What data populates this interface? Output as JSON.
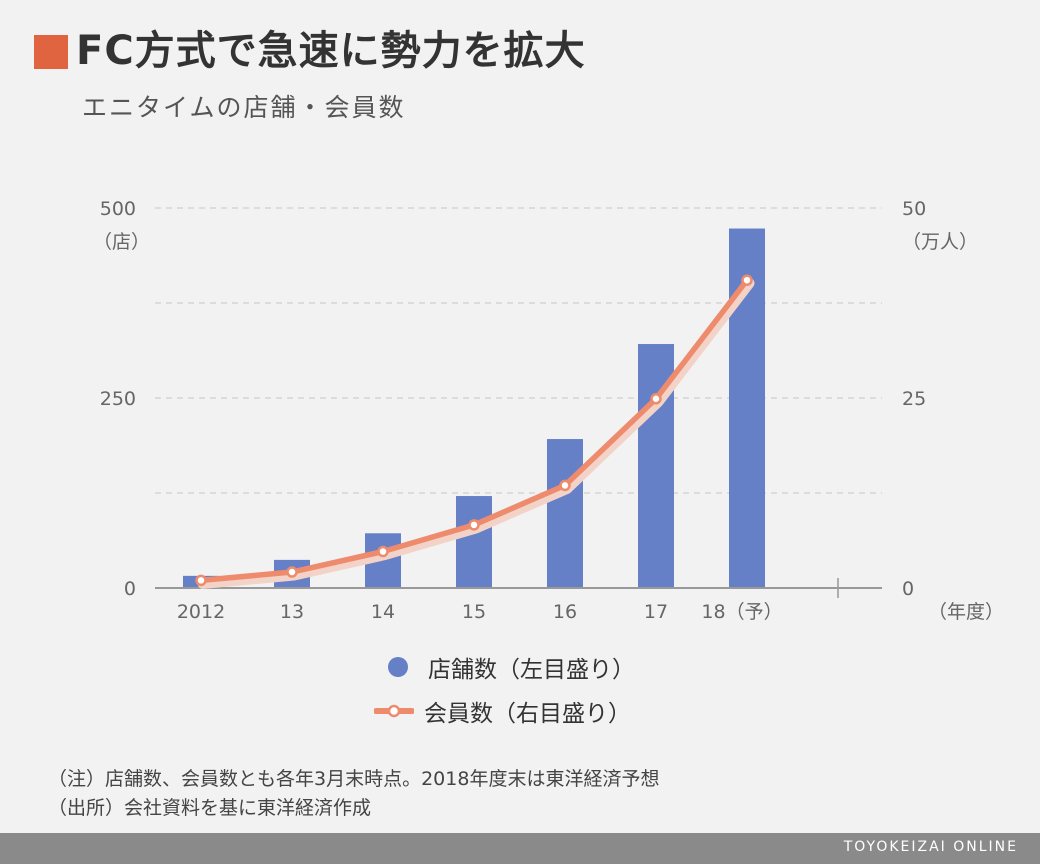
{
  "title": "FC方式で急速に勢力を拡大",
  "subtitle": "エニタイムの店舗・会員数",
  "chart_data": {
    "type": "bar+line",
    "categories": [
      "2012",
      "13",
      "14",
      "15",
      "16",
      "17",
      "18（予）"
    ],
    "series": [
      {
        "name": "店舗数（左目盛り）",
        "type": "bar",
        "axis": "left",
        "values": [
          16,
          37,
          72,
          121,
          196,
          321,
          473
        ],
        "color": "#6580c6"
      },
      {
        "name": "会員数（右目盛り）",
        "type": "line",
        "axis": "right",
        "values": [
          1.0,
          2.1,
          4.8,
          8.3,
          13.5,
          24.9,
          40.5
        ],
        "color": "#ee8b6d"
      }
    ],
    "left_axis": {
      "ticks": [
        "0",
        "250",
        "500"
      ],
      "unit": "（店）",
      "ylim": [
        0,
        500
      ]
    },
    "right_axis": {
      "ticks": [
        "0",
        "25",
        "50"
      ],
      "unit": "（万人）",
      "ylim": [
        0,
        50
      ]
    },
    "x_unit": "（年度）",
    "grid": true,
    "legend": "bottom"
  },
  "notes": [
    "（注）店舗数、会員数とも各年3月末時点。2018年度末は東洋経済予想",
    "（出所）会社資料を基に東洋経済作成"
  ],
  "footer": "TOYOKEIZAI ONLINE"
}
